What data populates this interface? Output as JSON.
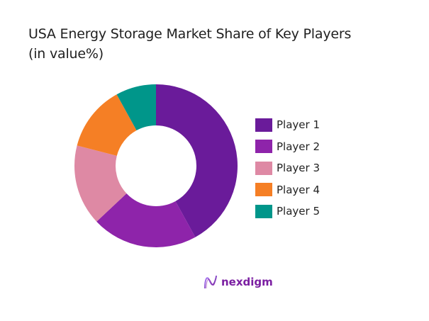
{
  "title_line1": "USA Energy Storage Market Share of Key Players",
  "title_line2": "(in value%)",
  "logo": {
    "text": "nexdigm"
  },
  "chart_data": {
    "type": "pie",
    "donut": true,
    "title": "USA Energy Storage Market Share of Key Players (in value%)",
    "categories": [
      "Player 1",
      "Player 2",
      "Player 3",
      "Player 4",
      "Player 5"
    ],
    "values": [
      42,
      21,
      16,
      13,
      8
    ],
    "colors": [
      "#6a1b9a",
      "#8e24aa",
      "#de89a4",
      "#f57f25",
      "#00968a"
    ],
    "legend_position": "right",
    "data_labels": false
  },
  "legend": [
    {
      "label": "Player 1",
      "color": "#6a1b9a"
    },
    {
      "label": "Player 2",
      "color": "#8e24aa"
    },
    {
      "label": "Player 3",
      "color": "#de89a4"
    },
    {
      "label": "Player 4",
      "color": "#f57f25"
    },
    {
      "label": "Player 5",
      "color": "#00968a"
    }
  ]
}
